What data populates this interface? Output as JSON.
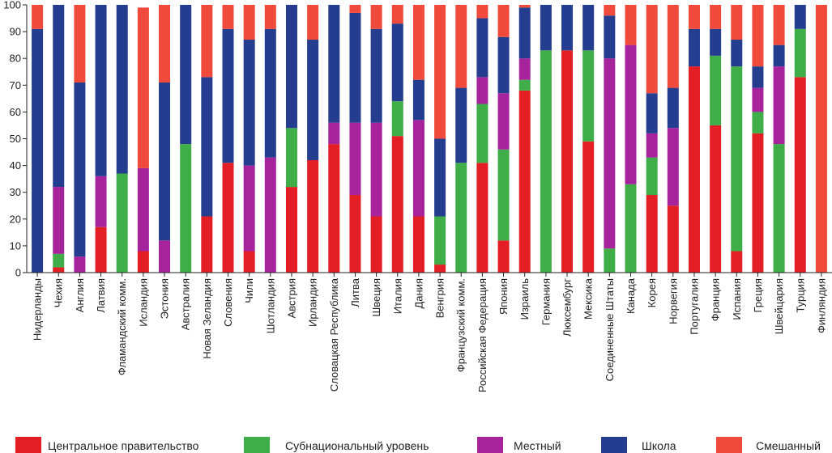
{
  "chart_data": {
    "type": "bar",
    "stacked": true,
    "title": "",
    "xlabel": "",
    "ylabel": "",
    "ylim": [
      0,
      100
    ],
    "yticks": [
      0,
      10,
      20,
      30,
      40,
      50,
      60,
      70,
      80,
      90,
      100
    ],
    "grid": false,
    "legend_position": "bottom",
    "colors": [
      "#e31e24",
      "#3fae49",
      "#a6239b",
      "#243d8e",
      "#ef4a3c"
    ],
    "categories": [
      "Нидерланды",
      "Чехия",
      "Англия",
      "Латвия",
      "Фламандский комм.",
      "Исландия",
      "Эстония",
      "Австралия",
      "Новая Зеландия",
      "Словения",
      "Чили",
      "Шотландия",
      "Австрия",
      "Ирландия",
      "Словацкая Республика",
      "Литва",
      "Швеция",
      "Италия",
      "Дания",
      "Венгрия",
      "Французский комм.",
      "Российская Федерация",
      "Япония",
      "Израиль",
      "Германия",
      "Люксембург",
      "Мексика",
      "Соединенные Штаты",
      "Канада",
      "Корея",
      "Норвегия",
      "Португалия",
      "Франция",
      "Испания",
      "Греция",
      "Швейцария",
      "Турция",
      "Финляндия"
    ],
    "series": [
      {
        "name": "Центральное правительство",
        "values": [
          0,
          2,
          0,
          17,
          0,
          8,
          0,
          0,
          21,
          41,
          8,
          0,
          32,
          42,
          48,
          29,
          21,
          51,
          21,
          3,
          0,
          41,
          12,
          68,
          0,
          83,
          49,
          0,
          0,
          29,
          25,
          77,
          55,
          8,
          52,
          0,
          73,
          0
        ]
      },
      {
        "name": "Субнациональный уровень",
        "values": [
          0,
          5,
          0,
          0,
          37,
          0,
          0,
          48,
          0,
          0,
          0,
          0,
          22,
          0,
          0,
          0,
          0,
          13,
          0,
          18,
          41,
          22,
          34,
          4,
          83,
          0,
          34,
          9,
          33,
          14,
          0,
          0,
          26,
          69,
          8,
          48,
          18,
          0
        ]
      },
      {
        "name": "Местный",
        "values": [
          0,
          25,
          6,
          19,
          0,
          31,
          12,
          0,
          0,
          0,
          32,
          43,
          0,
          0,
          8,
          27,
          35,
          0,
          36,
          0,
          0,
          10,
          21,
          8,
          0,
          0,
          0,
          71,
          52,
          9,
          29,
          0,
          0,
          0,
          9,
          29,
          0,
          0
        ]
      },
      {
        "name": "Школа",
        "values": [
          91,
          68,
          65,
          64,
          63,
          0,
          59,
          52,
          52,
          50,
          47,
          48,
          46,
          45,
          44,
          41,
          35,
          29,
          15,
          29,
          28,
          22,
          21,
          19,
          17,
          17,
          17,
          16,
          0,
          15,
          15,
          14,
          10,
          10,
          8,
          8,
          9,
          0
        ]
      },
      {
        "name": "Смешанный",
        "values": [
          9,
          0,
          29,
          0,
          0,
          60,
          29,
          0,
          27,
          9,
          13,
          9,
          0,
          13,
          0,
          3,
          9,
          7,
          28,
          50,
          31,
          5,
          12,
          1,
          0,
          0,
          0,
          4,
          15,
          33,
          31,
          9,
          9,
          13,
          23,
          15,
          0,
          100
        ]
      }
    ]
  }
}
